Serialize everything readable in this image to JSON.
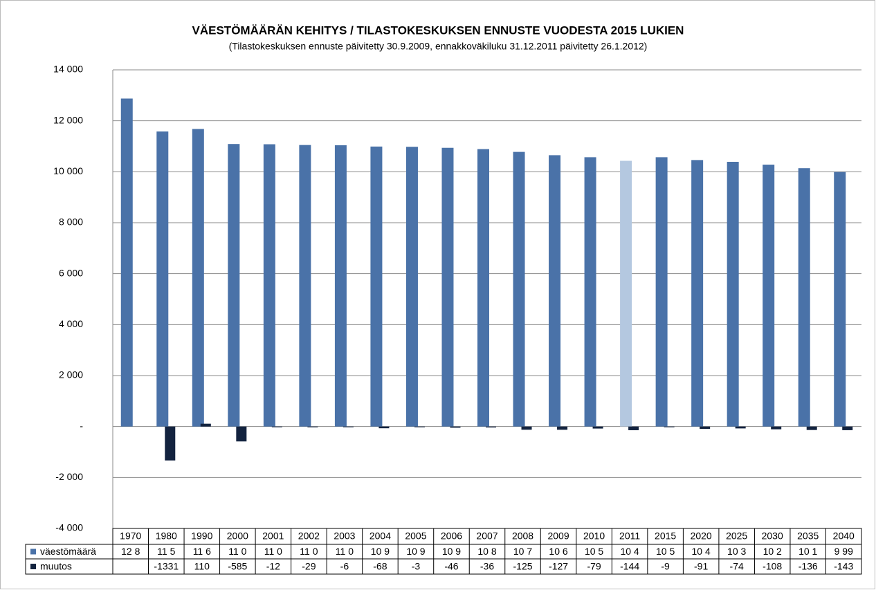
{
  "chart_data": {
    "type": "bar",
    "title": "VÄESTÖMÄÄRÄN KEHITYS / TILASTOKESKUKSEN ENNUSTE VUODESTA 2015 LUKIEN",
    "subtitle": "(Tilastokeskuksen ennuste päivitetty  30.9.2009, ennakkoväkiluku 31.12.2011 päivitetty 26.1.2012)",
    "categories": [
      "1970",
      "1980",
      "1990",
      "2000",
      "2001",
      "2002",
      "2003",
      "2004",
      "2005",
      "2006",
      "2007",
      "2008",
      "2009",
      "2010",
      "2011",
      "2015",
      "2020",
      "2025",
      "2030",
      "2035",
      "2040"
    ],
    "series": [
      {
        "name": "väestömäärä",
        "color": "#4a72a8",
        "colors": [
          "#4a72a8",
          "#4a72a8",
          "#4a72a8",
          "#4a72a8",
          "#4a72a8",
          "#4a72a8",
          "#4a72a8",
          "#4a72a8",
          "#4a72a8",
          "#4a72a8",
          "#4a72a8",
          "#4a72a8",
          "#4a72a8",
          "#4a72a8",
          "#b4c8e0",
          "#4a72a8",
          "#4a72a8",
          "#4a72a8",
          "#4a72a8",
          "#4a72a8",
          "#4a72a8"
        ],
        "values": [
          12874,
          11580,
          11680,
          11090,
          11080,
          11050,
          11040,
          10990,
          10980,
          10940,
          10890,
          10780,
          10650,
          10570,
          10430,
          10570,
          10460,
          10390,
          10280,
          10140,
          9990
        ],
        "value_labels": [
          "12 8",
          "11 5",
          "11 6",
          "11 0",
          "11 0",
          "11 0",
          "11 0",
          "10 9",
          "10 9",
          "10 9",
          "10 8",
          "10 7",
          "10 6",
          "10 5",
          "10 4",
          "10 5",
          "10 4",
          "10 3",
          "10 2",
          "10 1",
          "9 99"
        ]
      },
      {
        "name": "muutos",
        "color": "#13233f",
        "values": [
          null,
          -1331,
          110,
          -585,
          -12,
          -29,
          -6,
          -68,
          -3,
          -46,
          -36,
          -125,
          -127,
          -79,
          -144,
          -9,
          -91,
          -74,
          -108,
          -136,
          -143
        ]
      }
    ],
    "ylim": [
      -4000,
      14000
    ],
    "yticks": [
      {
        "value": -4000,
        "label": "-4 000"
      },
      {
        "value": -2000,
        "label": "-2 000"
      },
      {
        "value": 0,
        "label": "-"
      },
      {
        "value": 2000,
        "label": "2 000"
      },
      {
        "value": 4000,
        "label": "4 000"
      },
      {
        "value": 6000,
        "label": "6 000"
      },
      {
        "value": 8000,
        "label": "8 000"
      },
      {
        "value": 10000,
        "label": "10 000"
      },
      {
        "value": 12000,
        "label": "12 000"
      },
      {
        "value": 14000,
        "label": "14 000"
      }
    ],
    "grid": true
  }
}
